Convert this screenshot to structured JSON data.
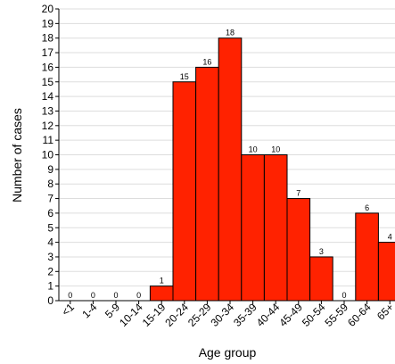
{
  "chart_data": {
    "type": "bar",
    "xlabel": "Age group",
    "ylabel": "Number of cases",
    "ylim": [
      0,
      20
    ],
    "ytick_step": 1,
    "grid": true,
    "categories": [
      "<1",
      "1-4",
      "5-9",
      "10-14",
      "15-19",
      "20-24",
      "25-29",
      "30-34",
      "35-39",
      "40-44",
      "45-49",
      "50-54",
      "55-59",
      "60-64",
      "65+"
    ],
    "values": [
      0,
      0,
      0,
      0,
      1,
      15,
      16,
      18,
      10,
      10,
      7,
      3,
      0,
      6,
      4
    ],
    "data_labels": [
      "0",
      "0",
      "0",
      "0",
      "1",
      "15",
      "16",
      "18",
      "10",
      "10",
      "7",
      "3",
      "0",
      "6",
      "4"
    ],
    "bar_color": "#ff2200",
    "bar_edge_color": "#000000",
    "grid_color": "#dddddd"
  }
}
